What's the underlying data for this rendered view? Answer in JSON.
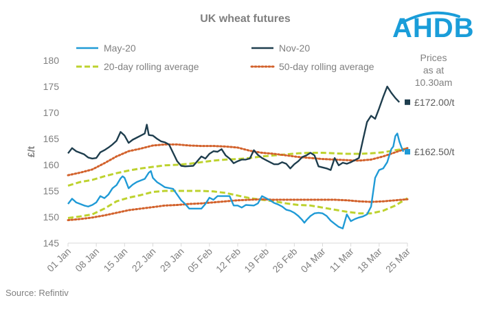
{
  "chart_data": {
    "type": "line",
    "title": "UK wheat futures",
    "ylabel": "£/t",
    "xlabel": "",
    "ylim": [
      145,
      180
    ],
    "yticks": [
      145,
      150,
      155,
      160,
      165,
      170,
      175,
      180
    ],
    "grid": false,
    "legend_position": "top",
    "x_tick_labels": [
      "01 Jan",
      "08 Jan",
      "15 Jan",
      "22 Jan",
      "29 Jan",
      "05 Feb",
      "12 Feb",
      "19 Feb",
      "26 Feb",
      "04 Mar",
      "11 Mar",
      "18 Mar",
      "25 Mar"
    ],
    "x_tick_days": [
      0,
      7,
      14,
      21,
      28,
      35,
      42,
      49,
      56,
      63,
      70,
      77,
      84
    ],
    "x_range_days": [
      0,
      84
    ],
    "series": [
      {
        "name": "May-20",
        "color": "#1f9ad6",
        "style": "solid",
        "points": [
          [
            0,
            152.5
          ],
          [
            1,
            153.5
          ],
          [
            2,
            152.8
          ],
          [
            4,
            152.2
          ],
          [
            5,
            152
          ],
          [
            6,
            152.3
          ],
          [
            7,
            152.8
          ],
          [
            8,
            154
          ],
          [
            9,
            153.6
          ],
          [
            10,
            154.3
          ],
          [
            11,
            155.5
          ],
          [
            12,
            156.1
          ],
          [
            13,
            157.4
          ],
          [
            13.5,
            157.8
          ],
          [
            14,
            157.5
          ],
          [
            15,
            155.5
          ],
          [
            16,
            156.2
          ],
          [
            17,
            156.7
          ],
          [
            18,
            157
          ],
          [
            19,
            157.3
          ],
          [
            20,
            158.5
          ],
          [
            20.5,
            158.8
          ],
          [
            21,
            157.5
          ],
          [
            22,
            156.7
          ],
          [
            23,
            156.2
          ],
          [
            24,
            155.7
          ],
          [
            26,
            155.4
          ],
          [
            27,
            154.3
          ],
          [
            28,
            153.2
          ],
          [
            29,
            152.5
          ],
          [
            30,
            151.6
          ],
          [
            31,
            151.6
          ],
          [
            33,
            151.6
          ],
          [
            34,
            152.5
          ],
          [
            35,
            153.7
          ],
          [
            36,
            153.3
          ],
          [
            37,
            154
          ],
          [
            38,
            154
          ],
          [
            39,
            154
          ],
          [
            40,
            154
          ],
          [
            41,
            152.2
          ],
          [
            42,
            152.2
          ],
          [
            43,
            151.8
          ],
          [
            44,
            152.3
          ],
          [
            46,
            152.2
          ],
          [
            47,
            152.6
          ],
          [
            48,
            154
          ],
          [
            49,
            153.6
          ],
          [
            50,
            153.2
          ],
          [
            51,
            152.7
          ],
          [
            52,
            152.4
          ],
          [
            53,
            152
          ],
          [
            54,
            151.4
          ],
          [
            55,
            151.2
          ],
          [
            56,
            150.8
          ],
          [
            57,
            150.2
          ],
          [
            58,
            149.4
          ],
          [
            58.5,
            148.9
          ],
          [
            59,
            149.4
          ],
          [
            60,
            150.2
          ],
          [
            61,
            150.7
          ],
          [
            62,
            150.8
          ],
          [
            63,
            150.7
          ],
          [
            64,
            150.2
          ],
          [
            65,
            149.3
          ],
          [
            66,
            148.7
          ],
          [
            67,
            148.1
          ],
          [
            68,
            147.8
          ],
          [
            69,
            150.5
          ],
          [
            70,
            149.2
          ],
          [
            71,
            149.6
          ],
          [
            72,
            149.9
          ],
          [
            73,
            150.1
          ],
          [
            74,
            150.5
          ],
          [
            75,
            152
          ],
          [
            76,
            157.5
          ],
          [
            77,
            159
          ],
          [
            78,
            159.3
          ],
          [
            79,
            160.5
          ],
          [
            80,
            163
          ],
          [
            80.5,
            163.5
          ],
          [
            81,
            165.5
          ],
          [
            81.5,
            166
          ],
          [
            82,
            164.5
          ],
          [
            82.5,
            163.4
          ],
          [
            83,
            162.5
          ]
        ]
      },
      {
        "name": "Nov-20",
        "color": "#1e3d4d",
        "style": "solid",
        "points": [
          [
            0,
            162.2
          ],
          [
            1,
            163.2
          ],
          [
            2,
            162.6
          ],
          [
            4,
            162
          ],
          [
            5,
            161.4
          ],
          [
            6,
            161.2
          ],
          [
            7,
            161.3
          ],
          [
            8,
            162.4
          ],
          [
            9,
            162.8
          ],
          [
            10,
            163.3
          ],
          [
            11,
            163.9
          ],
          [
            12,
            164.6
          ],
          [
            13,
            166.3
          ],
          [
            14,
            165.6
          ],
          [
            15,
            164.2
          ],
          [
            16,
            164.8
          ],
          [
            17,
            165.2
          ],
          [
            18,
            165.6
          ],
          [
            19,
            166
          ],
          [
            19.5,
            167.7
          ],
          [
            20,
            165.7
          ],
          [
            21,
            165.6
          ],
          [
            22,
            165
          ],
          [
            23,
            164.5
          ],
          [
            24,
            164.3
          ],
          [
            25,
            163.9
          ],
          [
            26,
            162.3
          ],
          [
            27,
            160.7
          ],
          [
            28,
            159.8
          ],
          [
            29,
            159.7
          ],
          [
            31,
            159.8
          ],
          [
            32,
            160.7
          ],
          [
            33,
            161.6
          ],
          [
            34,
            161.2
          ],
          [
            35,
            162.1
          ],
          [
            36,
            162.6
          ],
          [
            37,
            162.5
          ],
          [
            38,
            163
          ],
          [
            39,
            161.8
          ],
          [
            40,
            161.2
          ],
          [
            41,
            160.3
          ],
          [
            42,
            160.7
          ],
          [
            43,
            161
          ],
          [
            44,
            161
          ],
          [
            45,
            161.2
          ],
          [
            46,
            162.8
          ],
          [
            47,
            161.9
          ],
          [
            48,
            161.3
          ],
          [
            49,
            160.9
          ],
          [
            50,
            160.5
          ],
          [
            51,
            160.1
          ],
          [
            52,
            160.1
          ],
          [
            53,
            160.5
          ],
          [
            54,
            160.2
          ],
          [
            55,
            159.3
          ],
          [
            56,
            160.1
          ],
          [
            57,
            160.7
          ],
          [
            58,
            161.5
          ],
          [
            59,
            161.8
          ],
          [
            60,
            162.3
          ],
          [
            61,
            161.8
          ],
          [
            62,
            159.7
          ],
          [
            63,
            159.5
          ],
          [
            64,
            159.3
          ],
          [
            65,
            159
          ],
          [
            66,
            161.3
          ],
          [
            67,
            159.9
          ],
          [
            68,
            160.4
          ],
          [
            69,
            160.2
          ],
          [
            70,
            160.5
          ],
          [
            71,
            160.9
          ],
          [
            72,
            161.3
          ],
          [
            73,
            164.8
          ],
          [
            74,
            168.2
          ],
          [
            75,
            169.4
          ],
          [
            76,
            168.8
          ],
          [
            77,
            170.8
          ],
          [
            78,
            173
          ],
          [
            79,
            175
          ],
          [
            80,
            173.8
          ],
          [
            81,
            172.8
          ],
          [
            82,
            172
          ]
        ]
      },
      {
        "name": "20-day rolling average",
        "color": "#bdd22e",
        "style": "dashed",
        "points": [
          [
            0,
            156
          ],
          [
            3,
            156.7
          ],
          [
            6,
            157.1
          ],
          [
            9,
            157.8
          ],
          [
            12,
            158.4
          ],
          [
            15,
            158.9
          ],
          [
            18,
            159.3
          ],
          [
            21,
            159.6
          ],
          [
            24,
            159.9
          ],
          [
            27,
            160
          ],
          [
            30,
            160.2
          ],
          [
            33,
            160.5
          ],
          [
            36,
            160.8
          ],
          [
            39,
            161
          ],
          [
            42,
            161.1
          ],
          [
            45,
            161.3
          ],
          [
            48,
            161.6
          ],
          [
            51,
            161.8
          ],
          [
            54,
            162
          ],
          [
            57,
            162.2
          ],
          [
            60,
            162.3
          ],
          [
            63,
            162.3
          ],
          [
            66,
            162.2
          ],
          [
            69,
            162.1
          ],
          [
            72,
            162.1
          ],
          [
            75,
            162.2
          ],
          [
            78,
            162.4
          ],
          [
            81,
            162.8
          ],
          [
            84,
            163.1
          ]
        ]
      },
      {
        "name": "50-day rolling average",
        "color": "#d2612b",
        "style": "dotted",
        "points": [
          [
            0,
            158
          ],
          [
            3,
            158.5
          ],
          [
            6,
            159.1
          ],
          [
            9,
            160.3
          ],
          [
            12,
            161.6
          ],
          [
            15,
            162.6
          ],
          [
            18,
            163.1
          ],
          [
            21,
            163.7
          ],
          [
            24,
            163.9
          ],
          [
            27,
            163.9
          ],
          [
            30,
            163.7
          ],
          [
            33,
            163.6
          ],
          [
            36,
            163.6
          ],
          [
            39,
            163.5
          ],
          [
            42,
            163.3
          ],
          [
            45,
            162.7
          ],
          [
            48,
            162.3
          ],
          [
            51,
            162.1
          ],
          [
            54,
            161.8
          ],
          [
            57,
            161.5
          ],
          [
            60,
            161.3
          ],
          [
            63,
            161.1
          ],
          [
            66,
            161
          ],
          [
            69,
            160.9
          ],
          [
            72,
            160.8
          ],
          [
            75,
            161
          ],
          [
            78,
            161.6
          ],
          [
            81,
            162.4
          ],
          [
            84,
            163.2
          ]
        ]
      },
      {
        "name": "May-20 20-day rolling average",
        "color": "#bdd22e",
        "style": "dashed",
        "in_legend": false,
        "points": [
          [
            0,
            149.8
          ],
          [
            3,
            150.1
          ],
          [
            6,
            150.5
          ],
          [
            9,
            151.6
          ],
          [
            12,
            153
          ],
          [
            15,
            153.7
          ],
          [
            18,
            154.2
          ],
          [
            21,
            154.8
          ],
          [
            24,
            155
          ],
          [
            27,
            155
          ],
          [
            30,
            155
          ],
          [
            33,
            155
          ],
          [
            36,
            154.9
          ],
          [
            39,
            154.6
          ],
          [
            42,
            154.1
          ],
          [
            45,
            153.6
          ],
          [
            48,
            153.3
          ],
          [
            51,
            153
          ],
          [
            54,
            152.6
          ],
          [
            57,
            152.3
          ],
          [
            60,
            152.2
          ],
          [
            63,
            151.8
          ],
          [
            66,
            151.4
          ],
          [
            69,
            151
          ],
          [
            72,
            150.7
          ],
          [
            75,
            150.7
          ],
          [
            78,
            151.2
          ],
          [
            81,
            152.2
          ],
          [
            84,
            153.6
          ]
        ]
      },
      {
        "name": "May-20 50-day rolling average",
        "color": "#d2612b",
        "style": "dotted",
        "in_legend": false,
        "points": [
          [
            0,
            149.4
          ],
          [
            3,
            149.6
          ],
          [
            6,
            149.9
          ],
          [
            9,
            150.3
          ],
          [
            12,
            150.8
          ],
          [
            15,
            151.3
          ],
          [
            18,
            151.6
          ],
          [
            21,
            151.9
          ],
          [
            24,
            152.2
          ],
          [
            27,
            152.3
          ],
          [
            30,
            152.5
          ],
          [
            33,
            152.6
          ],
          [
            36,
            152.8
          ],
          [
            39,
            153
          ],
          [
            42,
            153.2
          ],
          [
            45,
            153.3
          ],
          [
            48,
            153.4
          ],
          [
            51,
            153.3
          ],
          [
            54,
            153.3
          ],
          [
            57,
            153.3
          ],
          [
            60,
            153.3
          ],
          [
            63,
            153.3
          ],
          [
            66,
            153.3
          ],
          [
            69,
            153.2
          ],
          [
            72,
            153
          ],
          [
            75,
            152.9
          ],
          [
            78,
            153
          ],
          [
            81,
            153.2
          ],
          [
            84,
            153.4
          ]
        ]
      }
    ],
    "end_markers": [
      {
        "series": "Nov-20",
        "day": 84,
        "value": 172.0,
        "label": "£172.00/t",
        "color": "#1e3d4d"
      },
      {
        "series": "May-20",
        "day": 84,
        "value": 162.5,
        "label": "£162.50/t",
        "color": "#1f9ad6"
      }
    ]
  },
  "note": {
    "lines": [
      "Prices",
      "as at",
      "10.30am"
    ]
  },
  "logo": {
    "text": "AHDB",
    "color": "#1a9dd9"
  },
  "source": "Source: Refintiv"
}
